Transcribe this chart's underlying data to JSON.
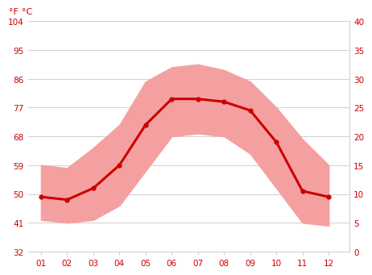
{
  "months": [
    1,
    2,
    3,
    4,
    5,
    6,
    7,
    8,
    9,
    10,
    11,
    12
  ],
  "month_labels": [
    "01",
    "02",
    "03",
    "04",
    "05",
    "06",
    "07",
    "08",
    "09",
    "10",
    "11",
    "12"
  ],
  "mean_c": [
    9.5,
    9.0,
    11.0,
    15.0,
    22.0,
    26.5,
    26.5,
    26.0,
    24.5,
    19.0,
    10.5,
    9.5
  ],
  "high_c": [
    15.0,
    14.5,
    18.0,
    22.0,
    29.5,
    32.0,
    32.5,
    31.5,
    29.5,
    25.0,
    19.5,
    15.0
  ],
  "low_c": [
    5.5,
    5.0,
    5.5,
    8.0,
    14.0,
    20.0,
    20.5,
    20.0,
    17.0,
    11.0,
    5.0,
    4.5
  ],
  "ylim_c": [
    0,
    40
  ],
  "yticks_c": [
    0,
    5,
    10,
    15,
    20,
    25,
    30,
    35,
    40
  ],
  "yticks_f": [
    32,
    41,
    50,
    59,
    68,
    77,
    86,
    95,
    104
  ],
  "line_color": "#cc0000",
  "band_color": "#f5a0a0",
  "grid_color": "#d0d0d0",
  "bg_color": "#ffffff",
  "axis_label_color": "#cc0000",
  "xlabel_unit_f": "°F",
  "xlabel_unit_c": "°C"
}
